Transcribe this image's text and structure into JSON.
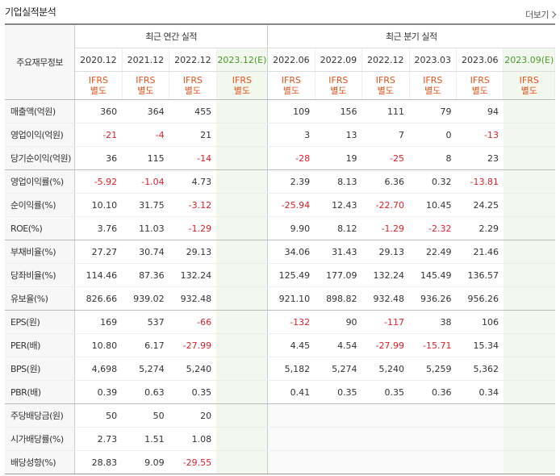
{
  "header": {
    "title": "기업실적분석",
    "more_label": "더보기"
  },
  "table": {
    "row_label_header": "주요재무정보",
    "annual_header": "최근 연간 실적",
    "quarter_header": "최근 분기 실적",
    "annual_periods": [
      "2020.12",
      "2021.12",
      "2022.12",
      "2023.12(E)"
    ],
    "quarter_periods": [
      "2022.06",
      "2022.09",
      "2022.12",
      "2023.03",
      "2023.06",
      "2023.09(E)"
    ],
    "standard_line1": "IFRS",
    "standard_line2": "별도",
    "rows": [
      {
        "label": "매출액(억원)",
        "annual": [
          "360",
          "364",
          "455",
          ""
        ],
        "quarter": [
          "109",
          "156",
          "111",
          "79",
          "94",
          ""
        ]
      },
      {
        "label": "영업이익(억원)",
        "annual": [
          "-21",
          "-4",
          "21",
          ""
        ],
        "quarter": [
          "3",
          "13",
          "7",
          "0",
          "-13",
          ""
        ]
      },
      {
        "label": "당기순이익(억원)",
        "annual": [
          "36",
          "115",
          "-14",
          ""
        ],
        "quarter": [
          "-28",
          "19",
          "-25",
          "8",
          "23",
          ""
        ]
      },
      {
        "label": "영업이익률(%)",
        "annual": [
          "-5.92",
          "-1.04",
          "4.73",
          ""
        ],
        "quarter": [
          "2.39",
          "8.13",
          "6.36",
          "0.32",
          "-13.81",
          ""
        ]
      },
      {
        "label": "순이익률(%)",
        "annual": [
          "10.10",
          "31.75",
          "-3.12",
          ""
        ],
        "quarter": [
          "-25.94",
          "12.43",
          "-22.70",
          "10.45",
          "24.25",
          ""
        ]
      },
      {
        "label": "ROE(%)",
        "annual": [
          "3.76",
          "11.03",
          "-1.29",
          ""
        ],
        "quarter": [
          "9.90",
          "8.12",
          "-1.29",
          "-2.32",
          "2.29",
          ""
        ]
      },
      {
        "label": "부채비율(%)",
        "annual": [
          "27.27",
          "30.74",
          "29.13",
          ""
        ],
        "quarter": [
          "34.06",
          "31.43",
          "29.13",
          "22.49",
          "21.46",
          ""
        ]
      },
      {
        "label": "당좌비율(%)",
        "annual": [
          "114.46",
          "87.36",
          "132.24",
          ""
        ],
        "quarter": [
          "125.49",
          "177.09",
          "132.24",
          "145.49",
          "136.57",
          ""
        ]
      },
      {
        "label": "유보율(%)",
        "annual": [
          "826.66",
          "939.02",
          "932.48",
          ""
        ],
        "quarter": [
          "921.10",
          "898.82",
          "932.48",
          "936.26",
          "956.26",
          ""
        ]
      },
      {
        "label": "EPS(원)",
        "annual": [
          "169",
          "537",
          "-66",
          ""
        ],
        "quarter": [
          "-132",
          "90",
          "-117",
          "38",
          "106",
          ""
        ]
      },
      {
        "label": "PER(배)",
        "annual": [
          "10.80",
          "6.17",
          "-27.99",
          ""
        ],
        "quarter": [
          "4.45",
          "4.54",
          "-27.99",
          "-15.71",
          "15.34",
          ""
        ]
      },
      {
        "label": "BPS(원)",
        "annual": [
          "4,698",
          "5,274",
          "5,240",
          ""
        ],
        "quarter": [
          "5,182",
          "5,274",
          "5,240",
          "5,259",
          "5,362",
          ""
        ]
      },
      {
        "label": "PBR(배)",
        "annual": [
          "0.39",
          "0.63",
          "0.35",
          ""
        ],
        "quarter": [
          "0.41",
          "0.35",
          "0.35",
          "0.36",
          "0.34",
          ""
        ]
      },
      {
        "label": "주당배당금(원)",
        "annual": [
          "50",
          "50",
          "20",
          ""
        ],
        "quarter": [
          "",
          "",
          "",
          "",
          "",
          ""
        ]
      },
      {
        "label": "시가배당률(%)",
        "annual": [
          "2.73",
          "1.51",
          "1.08",
          ""
        ],
        "quarter": [
          "",
          "",
          "",
          "",
          "",
          ""
        ]
      },
      {
        "label": "배당성향(%)",
        "annual": [
          "28.83",
          "9.09",
          "-29.55",
          ""
        ],
        "quarter": [
          "",
          "",
          "",
          "",
          "",
          ""
        ]
      }
    ]
  },
  "colors": {
    "negative": "#e0202a",
    "standard": "#e5531a",
    "estimate": "#4a9a2a",
    "estimate_bg": "#f3f8ee"
  }
}
